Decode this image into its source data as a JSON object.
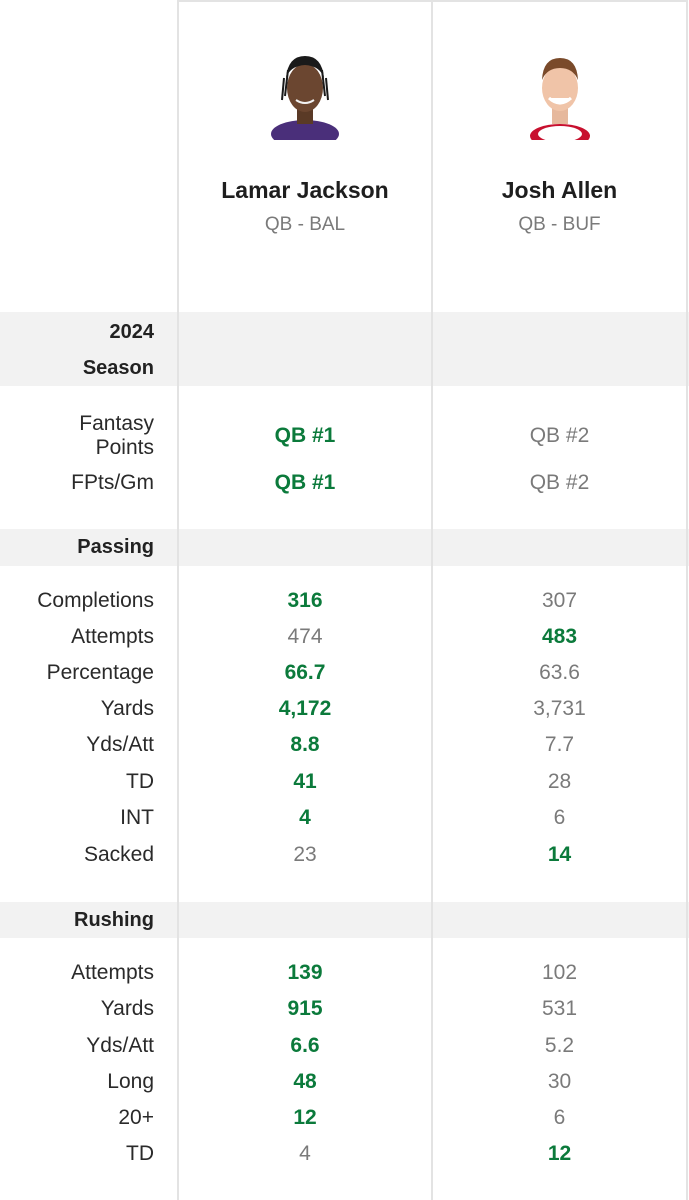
{
  "players": [
    {
      "name": "Lamar Jackson",
      "meta": "QB - BAL"
    },
    {
      "name": "Josh Allen",
      "meta": "QB - BUF"
    }
  ],
  "sections": {
    "season": {
      "title_line1": "2024",
      "title_line2": "Season"
    },
    "passing": {
      "title": "Passing"
    },
    "rushing": {
      "title": "Rushing"
    }
  },
  "rows": {
    "fantasy_points": {
      "label_line1": "Fantasy",
      "label_line2": "Points",
      "p1": "QB #1",
      "p2": "QB #2",
      "best": 1
    },
    "fpts_gm": {
      "label": "FPts/Gm",
      "p1": "QB #1",
      "p2": "QB #2",
      "best": 1
    },
    "completions": {
      "label": "Completions",
      "p1": "316",
      "p2": "307",
      "best": 1
    },
    "pass_attempts": {
      "label": "Attempts",
      "p1": "474",
      "p2": "483",
      "best": 2
    },
    "percentage": {
      "label": "Percentage",
      "p1": "66.7",
      "p2": "63.6",
      "best": 1
    },
    "pass_yards": {
      "label": "Yards",
      "p1": "4,172",
      "p2": "3,731",
      "best": 1
    },
    "pass_yds_att": {
      "label": "Yds/Att",
      "p1": "8.8",
      "p2": "7.7",
      "best": 1
    },
    "pass_td": {
      "label": "TD",
      "p1": "41",
      "p2": "28",
      "best": 1
    },
    "int": {
      "label": "INT",
      "p1": "4",
      "p2": "6",
      "best": 1
    },
    "sacked": {
      "label": "Sacked",
      "p1": "23",
      "p2": "14",
      "best": 2
    },
    "rush_attempts": {
      "label": "Attempts",
      "p1": "139",
      "p2": "102",
      "best": 1
    },
    "rush_yards": {
      "label": "Yards",
      "p1": "915",
      "p2": "531",
      "best": 1
    },
    "rush_yds_att": {
      "label": "Yds/Att",
      "p1": "6.6",
      "p2": "5.2",
      "best": 1
    },
    "long": {
      "label": "Long",
      "p1": "48",
      "p2": "30",
      "best": 1
    },
    "twenty_plus": {
      "label": "20+",
      "p1": "12",
      "p2": "6",
      "best": 1
    },
    "rush_td": {
      "label": "TD",
      "p1": "4",
      "p2": "12",
      "best": 2
    }
  },
  "colors": {
    "best": "#0b7a3b",
    "normal": "#7a7a7a",
    "band": "#f2f2f2",
    "grid": "#e3e3e3"
  },
  "icons": {
    "p1_photo": "player-headshot-icon",
    "p2_photo": "player-headshot-icon"
  }
}
